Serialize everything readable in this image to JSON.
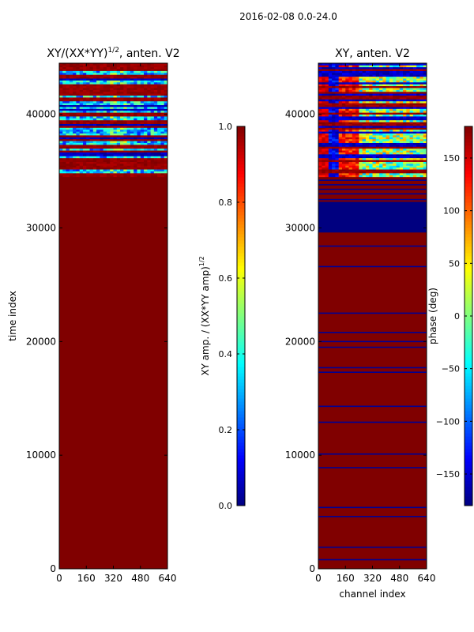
{
  "suptitle": "2016-02-08 0.0-24.0",
  "colors": {
    "jet": [
      "#00007f",
      "#0000ff",
      "#007fff",
      "#00ffff",
      "#7fff7f",
      "#ffff00",
      "#ff7f00",
      "#ff0000",
      "#7f0000"
    ],
    "frame": "#000000",
    "saturated": "#7f0000",
    "band_low": "#00007f"
  },
  "chart_data": [
    {
      "type": "heatmap",
      "title_text": "XY/(XX*YY)",
      "title_exponent": "1/2",
      "title_suffix": ", anten. V2",
      "xlabel": "",
      "ylabel": "time index",
      "xlim": [
        0,
        640
      ],
      "ylim": [
        0,
        44500
      ],
      "xticks": [
        "0",
        "160",
        "320",
        "480",
        "640"
      ],
      "yticks": [
        "0",
        "10000",
        "20000",
        "30000",
        "40000"
      ],
      "colorbar": {
        "label": "XY amp. / (XX*YY amp)",
        "label_exponent": "1/2",
        "range": [
          0.0,
          1.0
        ],
        "ticks": [
          "0.0",
          "0.2",
          "0.4",
          "0.6",
          "0.8",
          "1.0"
        ]
      },
      "baseline_value": 1.0,
      "noisy_region_start": 34500,
      "low_value_bands": [
        34600,
        34900,
        35000,
        36200,
        36600,
        37000,
        37500
      ]
    },
    {
      "type": "heatmap",
      "title_text": "XY, anten. V2",
      "xlabel": "channel index",
      "ylabel": "",
      "xlim": [
        0,
        640
      ],
      "ylim": [
        0,
        44500
      ],
      "xticks": [
        "0",
        "160",
        "320",
        "480",
        "640"
      ],
      "yticks": [
        "0",
        "10000",
        "20000",
        "30000",
        "40000"
      ],
      "colorbar": {
        "label": "phase (deg)",
        "range": [
          -180,
          180
        ],
        "ticks": [
          "−150",
          "−100",
          "−50",
          "0",
          "50",
          "100",
          "150"
        ]
      },
      "baseline_value": 180,
      "saturated_block": [
        29600,
        32300
      ],
      "noisy_region_start": 34500,
      "low_value_bands": [
        800,
        1900,
        4600,
        5400,
        8900,
        10100,
        12900,
        14300,
        17300,
        17700,
        19500,
        20000,
        20800,
        22500,
        26600,
        28400,
        32500,
        33000,
        33400,
        33800,
        34200
      ]
    }
  ]
}
